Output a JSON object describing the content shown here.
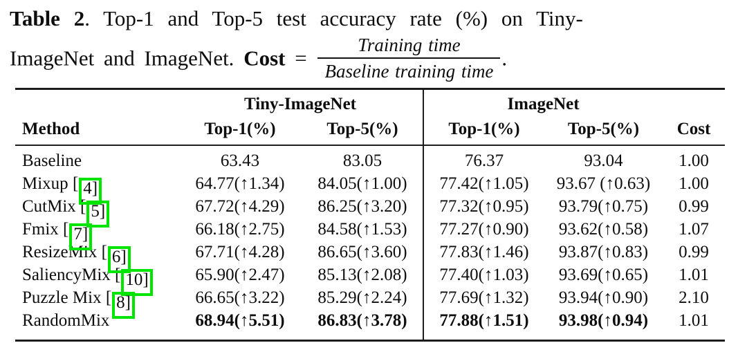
{
  "caption": {
    "label_bold": "Table 2",
    "line1_rest": ".  Top-1 and Top-5 test accuracy rate (%) on Tiny-",
    "line2_prefix": "ImageNet and ImageNet. ",
    "cost_label": "Cost",
    "equals_sign": " = ",
    "fraction": {
      "numerator": "Training time",
      "denominator": "Baseline training time"
    },
    "trailing_period": "."
  },
  "table": {
    "group_headers": {
      "tiny_imagenet": "Tiny-ImageNet",
      "imagenet": "ImageNet"
    },
    "columns": {
      "method": "Method",
      "tiny_top1": "Top-1(%)",
      "tiny_top5": "Top-5(%)",
      "in_top1": "Top-1(%)",
      "in_top5": "Top-5(%)",
      "cost": "Cost"
    },
    "citation_bracket_open": "[",
    "citation_bracket_close": "]",
    "rows": [
      {
        "method": "Baseline",
        "citation": null,
        "tiny_top1": "63.43",
        "tiny_top5": "83.05",
        "in_top1": "76.37",
        "in_top5": "93.04",
        "cost": "1.00",
        "bold_values": false
      },
      {
        "method": "Mixup",
        "citation": "4",
        "tiny_top1": "64.77(↑1.34)",
        "tiny_top5": "84.05(↑1.00)",
        "in_top1": "77.42(↑1.05)",
        "in_top5": "93.67 (↑0.63)",
        "cost": "1.00",
        "bold_values": false
      },
      {
        "method": "CutMix",
        "citation": "5",
        "tiny_top1": "67.72(↑4.29)",
        "tiny_top5": "86.25(↑3.20)",
        "in_top1": "77.32(↑0.95)",
        "in_top5": "93.79(↑0.75)",
        "cost": "0.99",
        "bold_values": false
      },
      {
        "method": "Fmix",
        "citation": "7",
        "tiny_top1": "66.18(↑2.75)",
        "tiny_top5": "84.58(↑1.53)",
        "in_top1": "77.27(↑0.90)",
        "in_top5": "93.62(↑0.58)",
        "cost": "1.07",
        "bold_values": false
      },
      {
        "method": "ResizeMix",
        "citation": "6",
        "tiny_top1": "67.71(↑4.28)",
        "tiny_top5": "86.65(↑3.60)",
        "in_top1": "77.83(↑1.46)",
        "in_top5": "93.87(↑0.83)",
        "cost": "0.99",
        "bold_values": false
      },
      {
        "method": "SaliencyMix",
        "citation": "10",
        "tiny_top1": "65.90(↑2.47)",
        "tiny_top5": "85.13(↑2.08)",
        "in_top1": "77.40(↑1.03)",
        "in_top5": "93.69(↑0.65)",
        "cost": "1.01",
        "bold_values": false
      },
      {
        "method": "Puzzle Mix",
        "citation": "8",
        "tiny_top1": "66.65(↑3.22)",
        "tiny_top5": "85.29(↑2.24)",
        "in_top1": "77.69(↑1.32)",
        "in_top5": "93.94(↑0.90)",
        "cost": "2.10",
        "bold_values": false
      },
      {
        "method": "RandomMix",
        "citation": null,
        "tiny_top1": "68.94(↑5.51)",
        "tiny_top5": "86.83(↑3.78)",
        "in_top1": "77.88(↑1.51)",
        "in_top5": "93.98(↑0.94)",
        "cost": "1.01",
        "bold_values": true
      }
    ]
  },
  "colors": {
    "citation_box_green": "#00e400",
    "rule_color": "#1c1c1c",
    "text_color": "#0d0d0d"
  }
}
